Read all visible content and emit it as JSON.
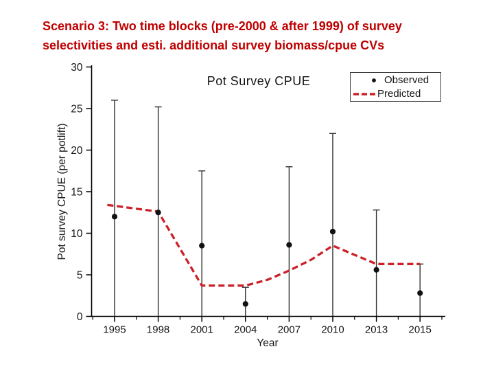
{
  "slide": {
    "title_line1": "Scenario 3: Two time blocks (pre-2000 & after 1999) of survey",
    "title_line2": "selectivities and esti. additional survey biomass/cpue CVs",
    "title_color": "#c00000"
  },
  "chart_data": {
    "type": "line",
    "title": "Pot Survey CPUE",
    "xlabel": "Year",
    "ylabel": "Pot survey CPUE (per potlift)",
    "ylim": [
      0,
      30
    ],
    "xlim_note": "major ticks evenly spaced",
    "y_ticks": [
      0,
      5,
      10,
      15,
      20,
      25,
      30
    ],
    "x_ticks": [
      1995,
      1998,
      2001,
      2004,
      2007,
      2010,
      2013,
      2015
    ],
    "grid": false,
    "legend_position": "top-right",
    "legend": {
      "observed": "Observed",
      "predicted": "Predicted"
    },
    "observed_color": "#111111",
    "errorbar_color": "#2f2f2f",
    "predicted_color": "#cc2027",
    "series": [
      {
        "name": "Observed",
        "type": "scatter",
        "years": [
          1995,
          1998,
          2001,
          2004,
          2007,
          2010,
          2013,
          2015
        ],
        "values": [
          12.0,
          12.5,
          8.5,
          1.5,
          8.6,
          10.2,
          5.6,
          2.8
        ],
        "error_upper": [
          26.0,
          25.2,
          17.5,
          3.5,
          18.0,
          22.0,
          12.8,
          6.3
        ],
        "error_lower": [
          0,
          0,
          0,
          0,
          0,
          0,
          0,
          0
        ]
      },
      {
        "name": "Predicted",
        "type": "dashed-line",
        "points": [
          {
            "year": 1994.5,
            "value": 13.4
          },
          {
            "year": 1995,
            "value": 13.3
          },
          {
            "year": 1998,
            "value": 12.6
          },
          {
            "year": 2001,
            "value": 3.7
          },
          {
            "year": 2004,
            "value": 3.7
          },
          {
            "year": 2005.5,
            "value": 4.4
          },
          {
            "year": 2007,
            "value": 5.5
          },
          {
            "year": 2008.5,
            "value": 6.8
          },
          {
            "year": 2010,
            "value": 8.5
          },
          {
            "year": 2013,
            "value": 6.3
          },
          {
            "year": 2015,
            "value": 6.3
          }
        ]
      }
    ]
  }
}
